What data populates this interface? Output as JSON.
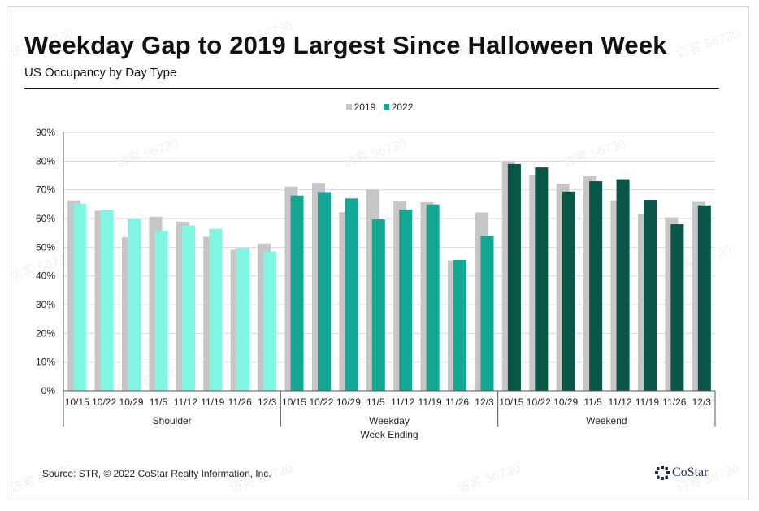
{
  "header": {
    "title": "Weekday Gap to 2019 Largest Since Halloween Week",
    "subtitle": "US Occupancy by Day Type"
  },
  "footer": {
    "source": "Source: STR, © 2022  CoStar Realty Information, Inc.",
    "logo_text": "CoStar"
  },
  "watermark_text": "访客 56730",
  "colors": {
    "bar_2019": "#c6c6c6",
    "shoulder_2022": "#7ff5e2",
    "weekday_2022": "#13a894",
    "weekend_2022": "#0a5646",
    "logo_accent": "#1f2a4a"
  },
  "chart_data": {
    "type": "bar",
    "title": "Weekday Gap to 2019 Largest Since Halloween Week",
    "subtitle": "US Occupancy by Day Type",
    "xlabel": "Week Ending",
    "ylabel": "",
    "ylim": [
      0,
      90
    ],
    "y_ticks": [
      "0%",
      "10%",
      "20%",
      "30%",
      "40%",
      "50%",
      "60%",
      "70%",
      "80%",
      "90%"
    ],
    "grid": "horizontal",
    "legend": {
      "position": "top-center",
      "entries": [
        "2019",
        "2022"
      ]
    },
    "groups": [
      {
        "name": "Shoulder",
        "categories": [
          "10/15",
          "10/22",
          "10/29",
          "11/5",
          "11/12",
          "11/19",
          "11/26",
          "12/3"
        ],
        "series": [
          {
            "name": "2019",
            "values": [
              66.3,
              62.7,
              53.5,
              60.6,
              58.9,
              53.7,
              49.1,
              51.3
            ]
          },
          {
            "name": "2022",
            "values": [
              65.2,
              62.9,
              60.1,
              55.8,
              57.6,
              56.4,
              49.8,
              48.5
            ]
          }
        ]
      },
      {
        "name": "Weekday",
        "categories": [
          "10/15",
          "10/22",
          "10/29",
          "11/5",
          "11/12",
          "11/19",
          "11/26",
          "12/3"
        ],
        "series": [
          {
            "name": "2019",
            "values": [
              71.1,
              72.4,
              62.2,
              70.1,
              65.9,
              65.7,
              45.4,
              62.1
            ]
          },
          {
            "name": "2022",
            "values": [
              68.0,
              69.2,
              67.0,
              59.7,
              63.1,
              64.9,
              45.6,
              54.0
            ]
          }
        ]
      },
      {
        "name": "Weekend",
        "categories": [
          "10/15",
          "10/22",
          "10/29",
          "11/5",
          "11/12",
          "11/19",
          "11/26",
          "12/3"
        ],
        "series": [
          {
            "name": "2019",
            "values": [
              80.0,
              75.0,
              72.1,
              74.7,
              66.3,
              61.4,
              60.4,
              65.8
            ]
          },
          {
            "name": "2022",
            "values": [
              79.0,
              77.8,
              69.4,
              73.0,
              73.7,
              66.5,
              58.0,
              64.6
            ]
          }
        ]
      }
    ]
  }
}
